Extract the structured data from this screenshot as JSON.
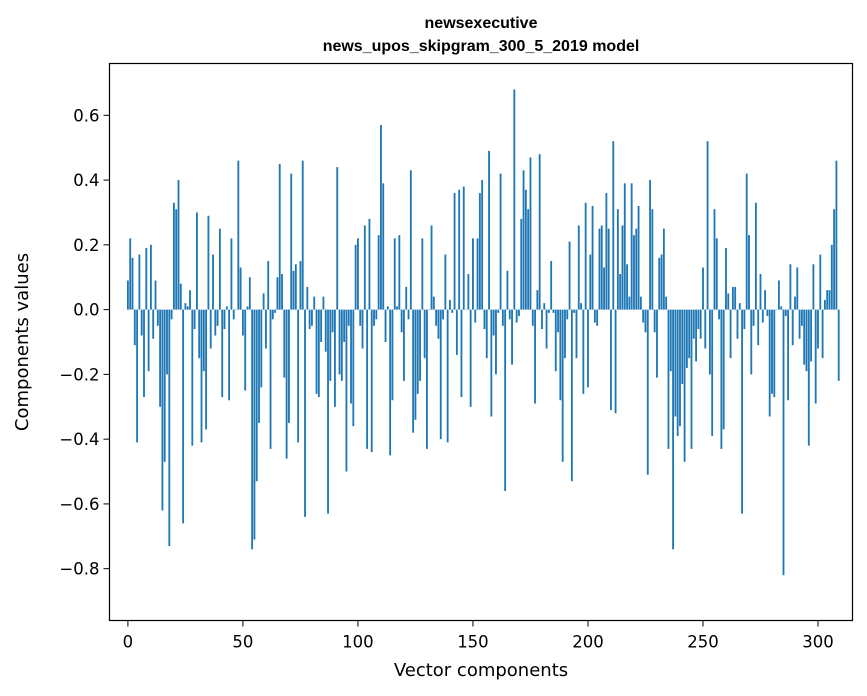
{
  "chart_data": {
    "type": "bar",
    "title": "newsexecutive",
    "subtitle": "news_upos_skipgram_300_5_2019 model",
    "xlabel": "Vector components",
    "ylabel": "Components values",
    "xlim": [
      -8,
      315
    ],
    "ylim": [
      -0.96,
      0.76
    ],
    "xticks": [
      0,
      50,
      100,
      150,
      200,
      250,
      300
    ],
    "xtick_labels": [
      "0",
      "50",
      "100",
      "150",
      "200",
      "250",
      "300"
    ],
    "yticks": [
      -0.8,
      -0.6,
      -0.4,
      -0.2,
      0.0,
      0.2,
      0.4,
      0.6
    ],
    "ytick_labels": [
      "−0.8",
      "−0.6",
      "−0.4",
      "−0.2",
      "0.0",
      "0.2",
      "0.4",
      "0.6"
    ],
    "grid": false,
    "bar_color": "#1f77b4",
    "x_start": 0,
    "values": [
      0.09,
      0.22,
      0.16,
      -0.11,
      -0.41,
      0.17,
      -0.08,
      -0.27,
      0.19,
      -0.19,
      0.2,
      -0.09,
      0.09,
      -0.05,
      -0.3,
      -0.62,
      -0.47,
      -0.2,
      -0.73,
      -0.03,
      0.33,
      0.31,
      0.4,
      0.08,
      -0.66,
      0.02,
      0.01,
      0.06,
      -0.42,
      -0.06,
      0.3,
      -0.15,
      -0.41,
      -0.19,
      -0.37,
      0.29,
      -0.12,
      0.17,
      -0.08,
      -0.05,
      0.25,
      -0.27,
      -0.06,
      0.01,
      -0.28,
      0.22,
      -0.03,
      0.0,
      0.46,
      0.13,
      -0.08,
      -0.25,
      0.01,
      0.1,
      -0.74,
      -0.71,
      -0.53,
      -0.35,
      -0.24,
      0.05,
      -0.12,
      0.15,
      -0.43,
      -0.03,
      -0.01,
      0.1,
      0.45,
      0.11,
      -0.21,
      -0.46,
      -0.35,
      0.42,
      0.12,
      0.14,
      -0.41,
      0.15,
      0.46,
      -0.64,
      0.07,
      -0.06,
      -0.05,
      0.04,
      -0.26,
      -0.27,
      -0.1,
      0.04,
      -0.13,
      -0.63,
      -0.22,
      -0.07,
      -0.3,
      0.44,
      -0.2,
      -0.22,
      -0.1,
      -0.5,
      -0.05,
      -0.29,
      -0.36,
      0.2,
      0.22,
      -0.05,
      -0.12,
      0.26,
      -0.43,
      0.28,
      -0.44,
      -0.05,
      -0.03,
      0.23,
      0.57,
      0.39,
      -0.1,
      0.01,
      -0.45,
      -0.28,
      0.22,
      0.01,
      0.23,
      -0.07,
      -0.22,
      0.07,
      -0.03,
      0.43,
      -0.38,
      -0.34,
      -0.26,
      -0.22,
      0.22,
      -0.15,
      -0.43,
      0.0,
      0.26,
      0.04,
      -0.05,
      -0.09,
      -0.4,
      -0.03,
      0.17,
      -0.41,
      0.03,
      -0.01,
      0.36,
      -0.14,
      0.37,
      -0.27,
      0.38,
      0.0,
      0.11,
      -0.3,
      0.22,
      -0.04,
      0.22,
      0.36,
      0.4,
      -0.06,
      -0.15,
      0.49,
      -0.33,
      -0.08,
      -0.2,
      -0.01,
      0.42,
      -0.05,
      -0.56,
      0.12,
      -0.03,
      -0.17,
      0.68,
      -0.04,
      -0.02,
      0.28,
      0.43,
      0.37,
      0.31,
      0.47,
      -0.05,
      -0.29,
      0.06,
      0.48,
      -0.06,
      0.02,
      -0.12,
      -0.01,
      0.15,
      -0.01,
      -0.19,
      -0.07,
      -0.28,
      -0.47,
      -0.15,
      -0.03,
      0.21,
      -0.53,
      -0.01,
      -0.15,
      0.26,
      0.02,
      -0.26,
      0.33,
      -0.24,
      0.17,
      0.32,
      -0.04,
      -0.05,
      0.25,
      0.26,
      0.13,
      0.36,
      0.25,
      -0.31,
      0.52,
      -0.32,
      0.31,
      0.11,
      0.26,
      0.39,
      0.14,
      0.04,
      0.39,
      0.23,
      0.25,
      0.32,
      0.04,
      -0.04,
      -0.07,
      -0.51,
      0.4,
      0.31,
      -0.07,
      -0.21,
      0.16,
      0.17,
      0.25,
      0.04,
      -0.43,
      -0.19,
      -0.74,
      -0.33,
      -0.39,
      -0.36,
      -0.23,
      -0.47,
      -0.18,
      -0.15,
      -0.43,
      -0.09,
      -0.16,
      -0.06,
      -0.09,
      0.13,
      -0.12,
      0.52,
      -0.2,
      -0.39,
      0.31,
      0.22,
      -0.03,
      -0.43,
      -0.37,
      0.19,
      0.05,
      -0.15,
      0.07,
      0.07,
      -0.09,
      0.02,
      -0.63,
      -0.06,
      0.42,
      0.23,
      -0.2,
      -0.05,
      0.33,
      -0.11,
      0.11,
      -0.04,
      0.06,
      -0.02,
      -0.33,
      -0.26,
      -0.27,
      0.0,
      0.09,
      0.01,
      -0.82,
      -0.02,
      -0.28,
      0.14,
      -0.11,
      0.04,
      0.13,
      -0.09,
      -0.05,
      -0.17,
      -0.19,
      -0.42,
      -0.16,
      0.14,
      -0.29,
      -0.12,
      0.17,
      -0.15,
      0.03,
      0.06,
      0.06,
      0.2,
      0.31,
      0.46,
      -0.22
    ]
  }
}
